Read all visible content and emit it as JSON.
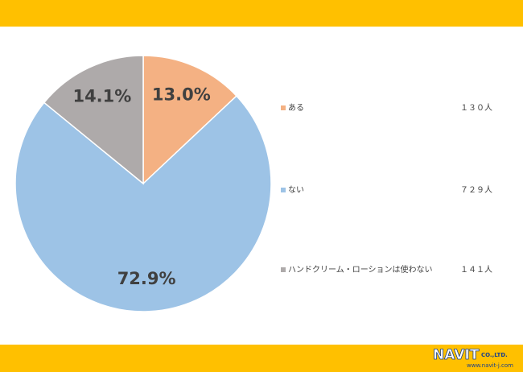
{
  "chart_data": {
    "type": "pie",
    "categories": [
      "ある",
      "ない",
      "ハンドクリーム・ローションは使わない"
    ],
    "values": [
      13.0,
      72.9,
      14.1
    ],
    "value_labels": [
      "13.0%",
      "72.9%",
      "14.1%"
    ],
    "counts": [
      130,
      729,
      141
    ],
    "count_labels": [
      "１３０人",
      "７２９人",
      "１４１人"
    ],
    "colors": [
      "#F4B183",
      "#9DC3E6",
      "#AEAAAA"
    ]
  },
  "footer": {
    "logo": "NAVIT",
    "company": "CO.,LTD.",
    "url": "www.navit-j.com"
  }
}
